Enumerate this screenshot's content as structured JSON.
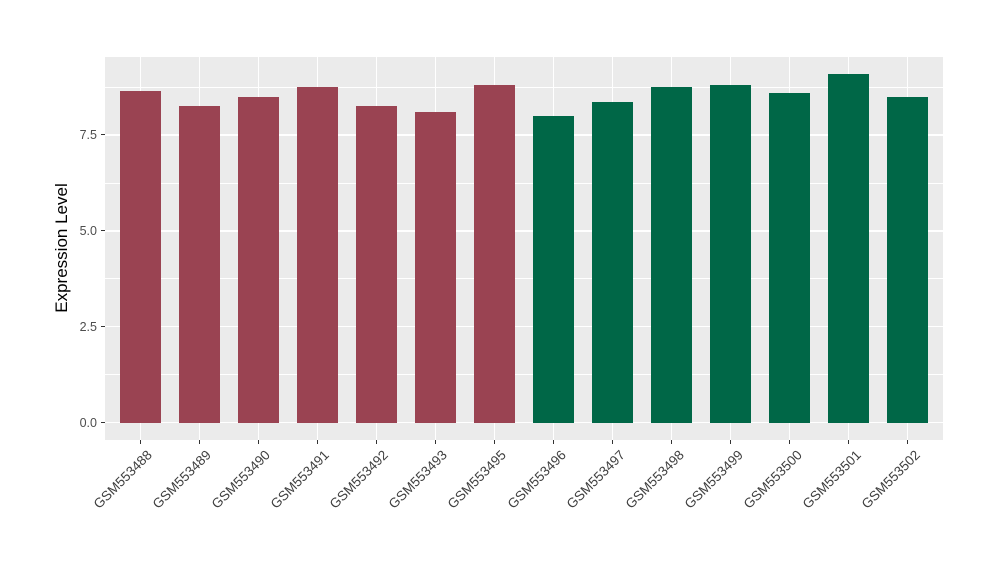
{
  "chart_data": {
    "type": "bar",
    "title": "",
    "xlabel": "",
    "ylabel": "Expression Level",
    "categories": [
      "GSM553488",
      "GSM553489",
      "GSM553490",
      "GSM553491",
      "GSM553492",
      "GSM553493",
      "GSM553495",
      "GSM553496",
      "GSM553497",
      "GSM553498",
      "GSM553499",
      "GSM553500",
      "GSM553501",
      "GSM553502"
    ],
    "values": [
      8.65,
      8.25,
      8.5,
      8.75,
      8.25,
      8.1,
      8.8,
      8.0,
      8.35,
      8.75,
      8.8,
      8.6,
      9.1,
      8.5
    ],
    "groups": [
      "A",
      "A",
      "A",
      "A",
      "A",
      "A",
      "A",
      "B",
      "B",
      "B",
      "B",
      "B",
      "B",
      "B"
    ],
    "group_colors": {
      "A": "#9A4352",
      "B": "#006747"
    },
    "yticks": {
      "values": [
        0,
        2.5,
        5,
        7.5
      ],
      "labels": [
        "0.0",
        "2.5",
        "5.0",
        "7.5"
      ]
    },
    "y_minor_gridlines": [
      1.25,
      3.75,
      6.25,
      8.75
    ],
    "ylim": [
      -0.45,
      9.53
    ],
    "bar_width_frac": 0.7,
    "grid": "on",
    "legend": "none",
    "style": {
      "panel_bg": "#EBEBEB",
      "grid_color": "#FFFFFF",
      "axis_text_color": "#4D4D4D",
      "axis_title_color": "#000000",
      "tick_color": "#333333",
      "background": "#FFFFFF"
    }
  }
}
